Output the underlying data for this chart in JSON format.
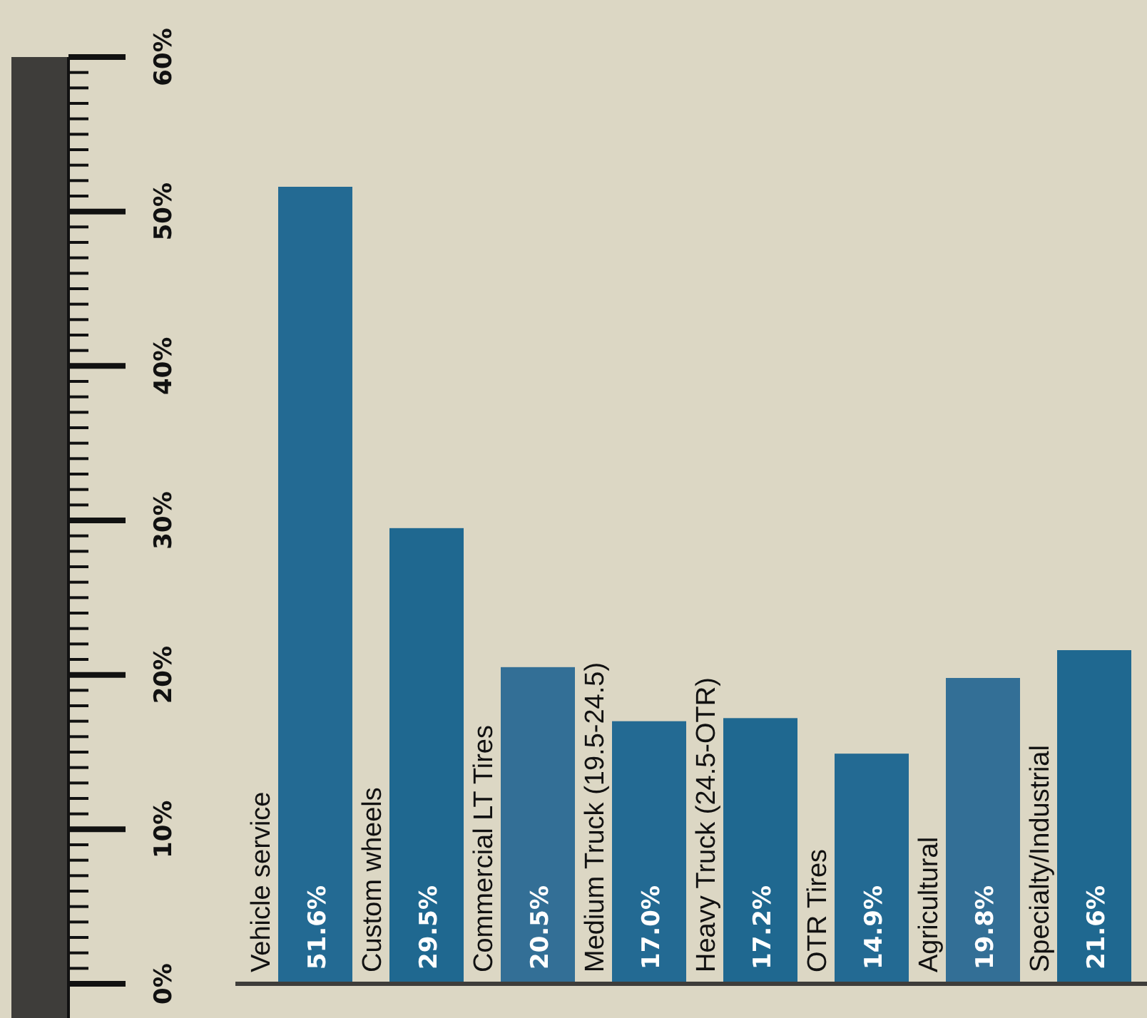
{
  "chart_data": {
    "type": "bar",
    "categories": [
      "Vehicle service",
      "Custom wheels",
      "Commercial LT Tires",
      "Medium Truck (19.5-24.5)",
      "Heavy Truck (24.5-OTR)",
      "OTR Tires",
      "Agricultural",
      "Specialty/Industrial"
    ],
    "values": [
      51.6,
      29.5,
      20.5,
      17.0,
      17.2,
      14.9,
      19.8,
      21.6
    ],
    "value_labels": [
      "51.6%",
      "29.5%",
      "20.5%",
      "17.0%",
      "17.2%",
      "14.9%",
      "19.8%",
      "21.6%"
    ],
    "colors": [
      "#236a93",
      "#1f6890",
      "#336f96",
      "#236a93",
      "#1f6890",
      "#236a93",
      "#336f96",
      "#1f6890"
    ],
    "ylim": [
      0,
      60
    ],
    "yticks": [
      {
        "value": 0,
        "label": "0%"
      },
      {
        "value": 10,
        "label": "10%"
      },
      {
        "value": 20,
        "label": "20%"
      },
      {
        "value": 30,
        "label": "30%"
      },
      {
        "value": 40,
        "label": "40%"
      },
      {
        "value": 50,
        "label": "50%"
      },
      {
        "value": 60,
        "label": "60%"
      }
    ],
    "grid": false
  }
}
